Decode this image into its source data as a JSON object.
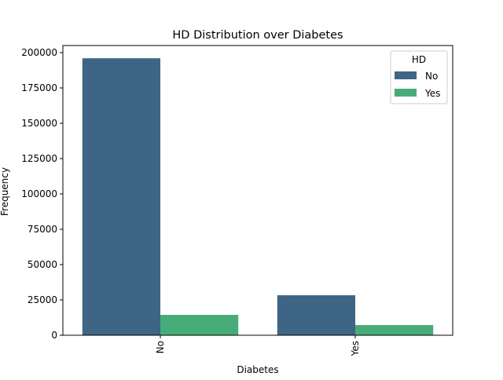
{
  "chart_data": {
    "type": "bar",
    "title": "HD Distribution over Diabetes",
    "xlabel": "Diabetes",
    "ylabel": "Frequency",
    "categories": [
      "No",
      "Yes"
    ],
    "series": [
      {
        "name": "No",
        "color": "#3e6583",
        "values": [
          196000,
          28300
        ]
      },
      {
        "name": "Yes",
        "color": "#46ac78",
        "values": [
          14400,
          7200
        ]
      }
    ],
    "yticks": [
      0,
      25000,
      50000,
      75000,
      100000,
      125000,
      150000,
      175000,
      200000
    ],
    "ylim": [
      0,
      205000
    ],
    "legend": {
      "title": "HD",
      "position": "top-right"
    },
    "grid": false
  }
}
